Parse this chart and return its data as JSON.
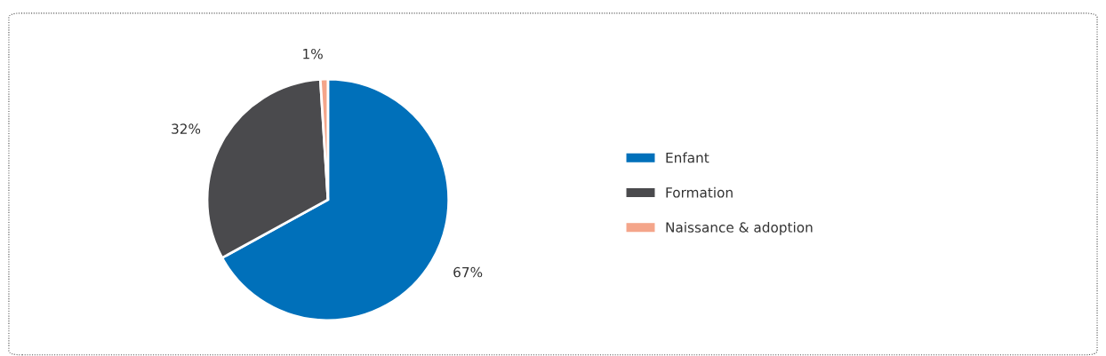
{
  "chart_data": {
    "type": "pie",
    "categories": [
      "Enfant",
      "Formation",
      "Naissance & adoption"
    ],
    "values": [
      67,
      32,
      1
    ],
    "colors": [
      "#0070ba",
      "#4a4a4d",
      "#f4a58a"
    ],
    "value_labels": [
      "67%",
      "32%",
      "1%"
    ],
    "legend": "right"
  }
}
